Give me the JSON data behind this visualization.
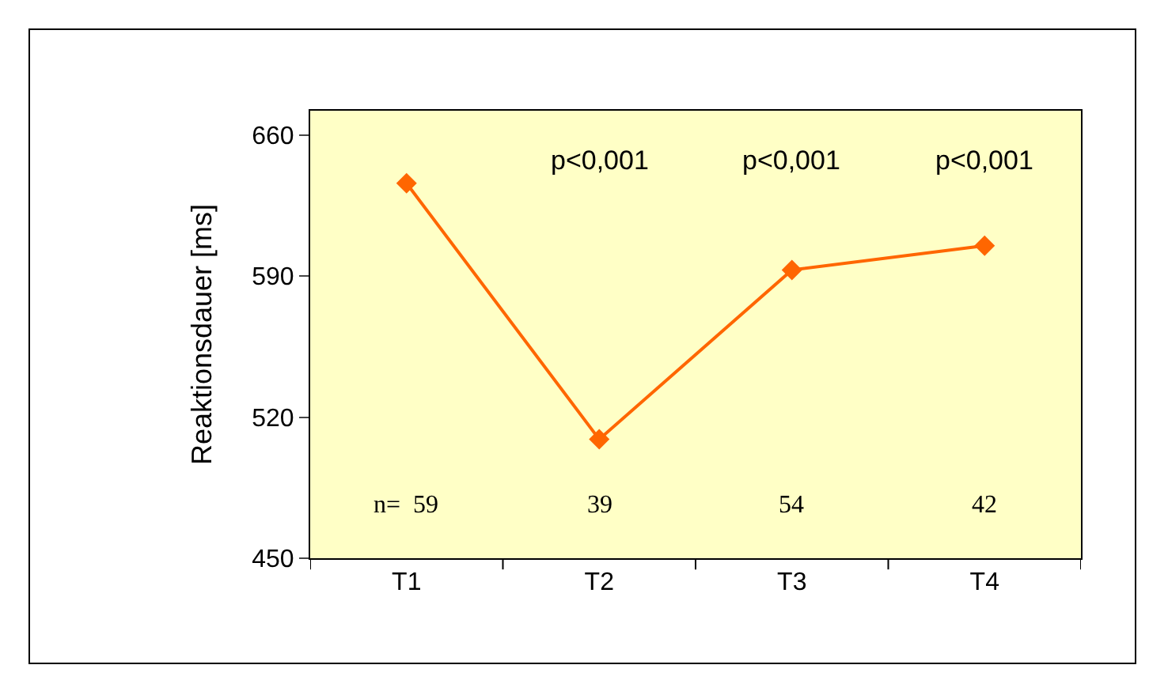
{
  "chart_data": {
    "type": "line",
    "ylabel": "Reaktionsdauer [ms]",
    "categories": [
      "T1",
      "T2",
      "T3",
      "T4"
    ],
    "series": [
      {
        "color": "#ff6600",
        "values": [
          636,
          509,
          593,
          605
        ]
      }
    ],
    "ylim": [
      450,
      672
    ],
    "yticks": [
      450,
      520,
      590,
      660
    ],
    "marker": "diamond",
    "line_style": "solid",
    "grid": false,
    "annotations": [
      "p<0,001",
      "p<0,001",
      "p<0,001",
      "n=  59",
      "39",
      "54",
      "42"
    ]
  }
}
